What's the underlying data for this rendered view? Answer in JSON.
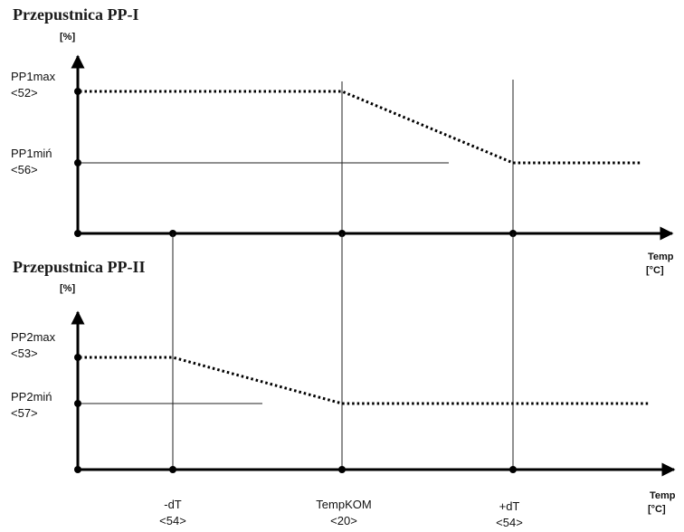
{
  "top": {
    "title": "Przepustnica PP-I",
    "unit": "[%]",
    "max_name": "PP1max",
    "max_param": "<52>",
    "min_name": "PP1miń",
    "min_param": "<56>"
  },
  "bottom": {
    "title": "Przepustnica PP-II",
    "unit": "[%]",
    "max_name": "PP2max",
    "max_param": "<53>",
    "min_name": "PP2miń",
    "min_param": "<57>"
  },
  "x_axis": {
    "name": "Temp",
    "unit": "[°C]"
  },
  "markers": [
    {
      "name": "-dT",
      "param": "<54>"
    },
    {
      "name": "TempKOM",
      "param": "<20>"
    },
    {
      "name": "+dT",
      "param": "<54>"
    }
  ]
}
